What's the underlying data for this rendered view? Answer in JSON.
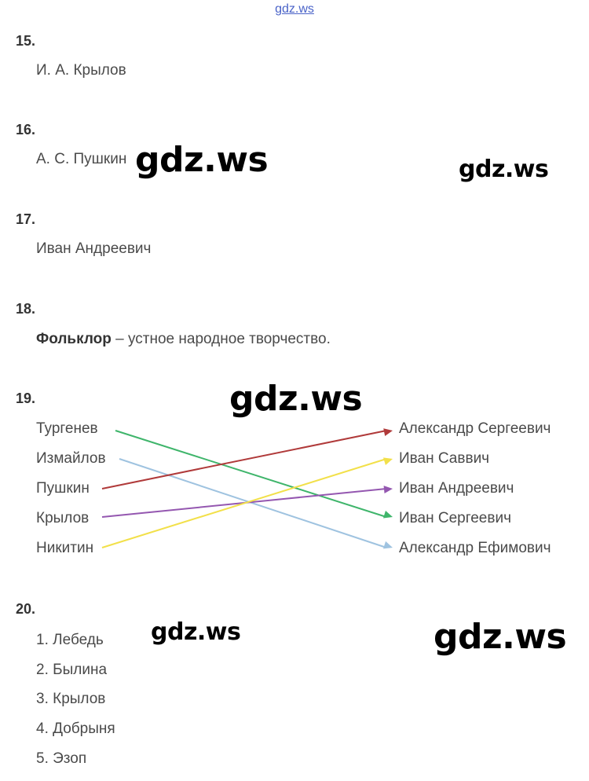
{
  "watermark_top": "gdz.ws",
  "watermarks": [
    "gdz.ws",
    "gdz.ws",
    "gdz.ws",
    "gdz.ws",
    "gdz.ws"
  ],
  "q15": {
    "num": "15.",
    "answer": "И. А. Крылов"
  },
  "q16": {
    "num": "16.",
    "answer": "А. С. Пушкин"
  },
  "q17": {
    "num": "17.",
    "answer": "Иван Андреевич"
  },
  "q18": {
    "num": "18.",
    "term": "Фольклор",
    "definition": " – устное народное творчество."
  },
  "q19": {
    "num": "19.",
    "left": [
      "Тургенев",
      "Измайлов",
      "Пушкин",
      "Крылов",
      "Никитин"
    ],
    "right": [
      "Александр Сергеевич",
      "Иван Саввич",
      "Иван Андреевич",
      "Иван Сергеевич",
      "Александр Ефимович"
    ],
    "links": [
      {
        "from": 0,
        "to": 3,
        "color": "#3fb56b"
      },
      {
        "from": 1,
        "to": 4,
        "color": "#9fc3e0"
      },
      {
        "from": 2,
        "to": 0,
        "color": "#b03a3a"
      },
      {
        "from": 3,
        "to": 2,
        "color": "#9457b0"
      },
      {
        "from": 4,
        "to": 1,
        "color": "#f2e04a"
      }
    ]
  },
  "q20": {
    "num": "20.",
    "items": [
      "1. Лебедь",
      "2. Былина",
      "3. Крылов",
      "4. Добрыня",
      "5. Эзоп"
    ]
  }
}
